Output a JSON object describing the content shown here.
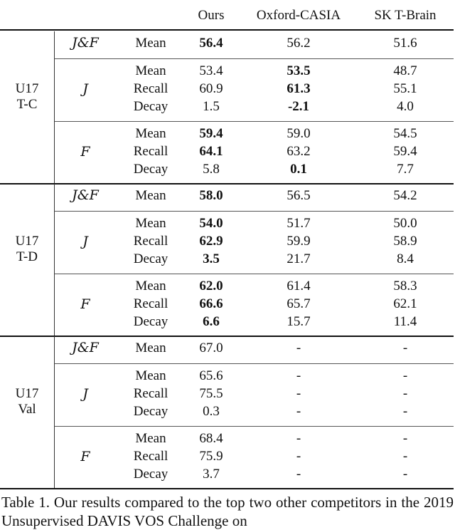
{
  "header": {
    "ours": "Ours",
    "oxford": "Oxford-CASIA",
    "sk": "SK T-Brain"
  },
  "caption": "Table 1. Our results compared to the top two other competitors in the 2019 Unsupervised DAVIS VOS Challenge on",
  "sections": [
    {
      "dataset_line1": "U17",
      "dataset_line2": "T-C",
      "jf": {
        "measure": "J&F",
        "metric": "Mean",
        "ours": "56.4",
        "oxford": "56.2",
        "sk": "51.6"
      },
      "j": {
        "measure": "J",
        "rows": [
          {
            "metric": "Mean",
            "ours": "53.4",
            "oxford": "53.5",
            "sk": "48.7"
          },
          {
            "metric": "Recall",
            "ours": "60.9",
            "oxford": "61.3",
            "sk": "55.1"
          },
          {
            "metric": "Decay",
            "ours": "1.5",
            "oxford": "-2.1",
            "sk": "4.0"
          }
        ]
      },
      "f": {
        "measure": "F",
        "rows": [
          {
            "metric": "Mean",
            "ours": "59.4",
            "oxford": "59.0",
            "sk": "54.5"
          },
          {
            "metric": "Recall",
            "ours": "64.1",
            "oxford": "63.2",
            "sk": "59.4"
          },
          {
            "metric": "Decay",
            "ours": "5.8",
            "oxford": "0.1",
            "sk": "7.7"
          }
        ]
      }
    },
    {
      "dataset_line1": "U17",
      "dataset_line2": "T-D",
      "jf": {
        "measure": "J&F",
        "metric": "Mean",
        "ours": "58.0",
        "oxford": "56.5",
        "sk": "54.2"
      },
      "j": {
        "measure": "J",
        "rows": [
          {
            "metric": "Mean",
            "ours": "54.0",
            "oxford": "51.7",
            "sk": "50.0"
          },
          {
            "metric": "Recall",
            "ours": "62.9",
            "oxford": "59.9",
            "sk": "58.9"
          },
          {
            "metric": "Decay",
            "ours": "3.5",
            "oxford": "21.7",
            "sk": "8.4"
          }
        ]
      },
      "f": {
        "measure": "F",
        "rows": [
          {
            "metric": "Mean",
            "ours": "62.0",
            "oxford": "61.4",
            "sk": "58.3"
          },
          {
            "metric": "Recall",
            "ours": "66.6",
            "oxford": "65.7",
            "sk": "62.1"
          },
          {
            "metric": "Decay",
            "ours": "6.6",
            "oxford": "15.7",
            "sk": "11.4"
          }
        ]
      }
    },
    {
      "dataset_line1": "U17",
      "dataset_line2": "Val",
      "jf": {
        "measure": "J&F",
        "metric": "Mean",
        "ours": "67.0",
        "oxford": "-",
        "sk": "-"
      },
      "j": {
        "measure": "J",
        "rows": [
          {
            "metric": "Mean",
            "ours": "65.6",
            "oxford": "-",
            "sk": "-"
          },
          {
            "metric": "Recall",
            "ours": "75.5",
            "oxford": "-",
            "sk": "-"
          },
          {
            "metric": "Decay",
            "ours": "0.3",
            "oxford": "-",
            "sk": "-"
          }
        ]
      },
      "f": {
        "measure": "F",
        "rows": [
          {
            "metric": "Mean",
            "ours": "68.4",
            "oxford": "-",
            "sk": "-"
          },
          {
            "metric": "Recall",
            "ours": "75.9",
            "oxford": "-",
            "sk": "-"
          },
          {
            "metric": "Decay",
            "ours": "3.7",
            "oxford": "-",
            "sk": "-"
          }
        ]
      }
    }
  ]
}
